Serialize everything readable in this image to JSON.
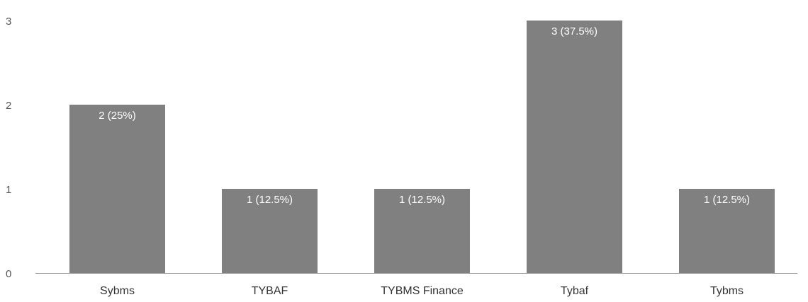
{
  "chart_data": {
    "type": "bar",
    "title": "",
    "xlabel": "",
    "ylabel": "",
    "categories": [
      "Sybms",
      "TYBAF",
      "TYBMS Finance",
      "Tybaf",
      "Tybms"
    ],
    "values": [
      2,
      1,
      1,
      3,
      1
    ],
    "data_labels": [
      "2 (25%)",
      "1 (12.5%)",
      "1 (12.5%)",
      "3 (37.5%)",
      "1 (12.5%)"
    ],
    "ylim": [
      0,
      3
    ],
    "y_ticks": [
      0,
      1,
      2,
      3
    ],
    "grid": false,
    "legend": "none",
    "colors": {
      "bar": "#808080",
      "bar_label": "#ffffff",
      "axis": "#999999"
    }
  }
}
